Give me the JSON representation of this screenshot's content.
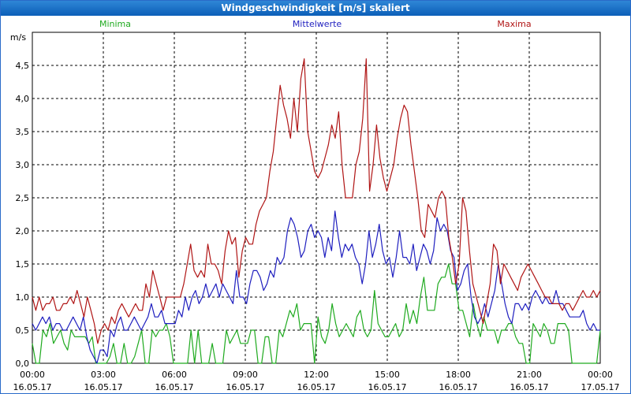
{
  "window": {
    "title": "Windgeschwindigkeit [m/s] skaliert"
  },
  "chart_data": {
    "type": "line",
    "title": "Windgeschwindigkeit [m/s] skaliert",
    "ylabel": "m/s",
    "ylim": [
      0,
      5
    ],
    "yticks": [
      0,
      0.5,
      1,
      1.5,
      2,
      2.5,
      3,
      3.5,
      4,
      4.5
    ],
    "ytick_labels": [
      "0,0",
      "0,5",
      "1,0",
      "1,5",
      "2,0",
      "2,5",
      "3,0",
      "3,5",
      "4,0",
      "4,5"
    ],
    "xlim": [
      0,
      24
    ],
    "xticks": [
      0,
      3,
      6,
      9,
      12,
      15,
      18,
      21,
      24
    ],
    "xtick_labels": [
      [
        "00:00",
        "16.05.17"
      ],
      [
        "03:00",
        "16.05.17"
      ],
      [
        "06:00",
        "16.05.17"
      ],
      [
        "09:00",
        "16.05.17"
      ],
      [
        "12:00",
        "16.05.17"
      ],
      [
        "15:00",
        "16.05.17"
      ],
      [
        "18:00",
        "16.05.17"
      ],
      [
        "21:00",
        "16.05.17"
      ],
      [
        "00:00",
        "17.05.17"
      ]
    ],
    "grid": true,
    "legend_position": "top",
    "x_step_hours": 0.1667,
    "series": [
      {
        "name": "Minima",
        "color": "#1faa1f",
        "values": [
          0.3,
          0.0,
          0.0,
          0.5,
          0.4,
          0.6,
          0.3,
          0.4,
          0.5,
          0.3,
          0.2,
          0.5,
          0.4,
          0.4,
          0.4,
          0.4,
          0.3,
          0.4,
          0.0,
          0.0,
          0.0,
          0.0,
          0.1,
          0.3,
          0.0,
          0.0,
          0.3,
          0.0,
          0.0,
          0.1,
          0.3,
          0.5,
          0.0,
          0.0,
          0.5,
          0.4,
          0.5,
          0.5,
          0.6,
          0.4,
          0.0,
          0.0,
          0.0,
          0.0,
          0.0,
          0.5,
          0.0,
          0.5,
          0.0,
          0.0,
          0.0,
          0.3,
          0.0,
          0.0,
          0.0,
          0.5,
          0.3,
          0.4,
          0.5,
          0.3,
          0.3,
          0.3,
          0.5,
          0.5,
          0.0,
          0.0,
          0.4,
          0.4,
          0.0,
          0.0,
          0.5,
          0.4,
          0.6,
          0.8,
          0.7,
          0.9,
          0.5,
          0.6,
          0.6,
          0.6,
          0.0,
          0.7,
          0.4,
          0.3,
          0.5,
          0.9,
          0.6,
          0.4,
          0.5,
          0.6,
          0.5,
          0.4,
          0.7,
          0.8,
          0.5,
          0.4,
          0.5,
          1.1,
          0.6,
          0.5,
          0.4,
          0.4,
          0.5,
          0.6,
          0.4,
          0.5,
          0.9,
          0.6,
          0.8,
          0.6,
          1.0,
          1.3,
          0.8,
          0.8,
          0.8,
          1.2,
          1.3,
          1.3,
          1.5,
          1.2,
          1.2,
          0.8,
          0.8,
          0.6,
          0.4,
          0.9,
          0.6,
          0.4,
          0.7,
          0.5,
          0.5,
          0.5,
          0.3,
          0.5,
          0.5,
          0.6,
          0.6,
          0.4,
          0.3,
          0.3,
          0.0,
          0.0,
          0.6,
          0.5,
          0.4,
          0.6,
          0.5,
          0.3,
          0.3,
          0.6,
          0.6,
          0.6,
          0.5,
          0.0,
          0.0,
          0.0,
          0.0,
          0.0,
          0.0,
          0.0,
          0.0,
          0.5
        ]
      },
      {
        "name": "Mittelwerte",
        "color": "#1f1fbf",
        "values": [
          0.6,
          0.5,
          0.6,
          0.7,
          0.6,
          0.7,
          0.5,
          0.6,
          0.6,
          0.5,
          0.5,
          0.6,
          0.7,
          0.6,
          0.5,
          0.7,
          0.4,
          0.2,
          0.1,
          0.0,
          0.2,
          0.2,
          0.1,
          0.5,
          0.4,
          0.6,
          0.7,
          0.5,
          0.5,
          0.6,
          0.7,
          0.6,
          0.5,
          0.6,
          0.7,
          0.9,
          0.7,
          0.7,
          0.8,
          0.6,
          0.6,
          0.6,
          0.6,
          0.8,
          0.7,
          1.0,
          0.8,
          1.0,
          1.1,
          0.9,
          1.0,
          1.2,
          1.0,
          1.1,
          1.2,
          1.0,
          1.2,
          1.1,
          1.0,
          0.9,
          1.4,
          1.0,
          1.0,
          0.9,
          1.2,
          1.4,
          1.4,
          1.3,
          1.1,
          1.2,
          1.4,
          1.3,
          1.6,
          1.5,
          1.6,
          2.0,
          2.2,
          2.1,
          1.9,
          1.6,
          1.7,
          2.0,
          2.1,
          1.9,
          2.0,
          1.9,
          1.6,
          1.9,
          1.7,
          2.3,
          1.9,
          1.6,
          1.8,
          1.7,
          1.8,
          1.6,
          1.5,
          1.2,
          1.5,
          2.0,
          1.6,
          1.8,
          2.1,
          1.7,
          1.5,
          1.6,
          1.3,
          1.6,
          2.0,
          1.6,
          1.6,
          1.5,
          1.8,
          1.4,
          1.6,
          1.8,
          1.7,
          1.5,
          1.7,
          2.2,
          2.0,
          2.1,
          2.0,
          1.7,
          1.6,
          1.1,
          1.2,
          1.4,
          1.5,
          1.0,
          0.7,
          0.6,
          0.7,
          0.9,
          0.7,
          0.9,
          1.1,
          1.5,
          1.2,
          0.9,
          0.7,
          0.6,
          0.9,
          0.9,
          0.8,
          0.9,
          0.8,
          1.0,
          1.1,
          1.0,
          0.9,
          1.0,
          0.9,
          0.9,
          1.1,
          0.9,
          0.9,
          0.8,
          0.7,
          0.7,
          0.7,
          0.7,
          0.8,
          0.6,
          0.5,
          0.6,
          0.5,
          0.5
        ]
      },
      {
        "name": "Maxima",
        "color": "#b01515",
        "values": [
          1.0,
          0.8,
          1.0,
          0.8,
          0.9,
          0.9,
          1.0,
          0.8,
          0.8,
          0.9,
          0.9,
          1.0,
          0.9,
          1.1,
          0.9,
          0.7,
          1.0,
          0.8,
          0.6,
          0.3,
          0.5,
          0.6,
          0.5,
          0.7,
          0.6,
          0.8,
          0.9,
          0.8,
          0.7,
          0.8,
          0.9,
          0.8,
          0.8,
          1.2,
          1.0,
          1.4,
          1.2,
          1.0,
          0.8,
          1.0,
          1.0,
          1.0,
          1.0,
          1.0,
          1.2,
          1.5,
          1.8,
          1.4,
          1.3,
          1.4,
          1.3,
          1.8,
          1.5,
          1.5,
          1.4,
          1.2,
          1.7,
          2.0,
          1.8,
          1.9,
          1.3,
          1.7,
          1.9,
          1.8,
          1.8,
          2.1,
          2.3,
          2.4,
          2.5,
          2.9,
          3.2,
          3.7,
          4.2,
          3.9,
          3.7,
          3.4,
          4.0,
          3.5,
          4.3,
          4.6,
          3.5,
          3.2,
          2.9,
          2.8,
          2.9,
          3.1,
          3.3,
          3.6,
          3.4,
          3.8,
          3.0,
          2.5,
          2.5,
          2.5,
          3.0,
          3.2,
          3.7,
          4.6,
          2.6,
          3.0,
          3.6,
          3.1,
          2.8,
          2.6,
          2.8,
          3.0,
          3.4,
          3.7,
          3.9,
          3.8,
          3.3,
          2.9,
          2.5,
          2.0,
          1.9,
          2.4,
          2.3,
          2.2,
          2.5,
          2.6,
          2.5,
          1.9,
          1.6,
          1.2,
          1.5,
          2.5,
          2.3,
          1.7,
          1.2,
          1.0,
          0.8,
          0.6,
          0.9,
          1.2,
          1.8,
          1.7,
          1.2,
          1.5,
          1.4,
          1.3,
          1.2,
          1.1,
          1.3,
          1.4,
          1.5,
          1.4,
          1.3,
          1.2,
          1.1,
          1.0,
          1.0,
          0.9,
          0.9,
          0.9,
          0.8,
          0.9,
          0.9,
          0.8,
          0.9,
          1.0,
          1.1,
          1.0,
          1.0,
          1.1,
          1.0,
          1.1
        ]
      }
    ]
  }
}
